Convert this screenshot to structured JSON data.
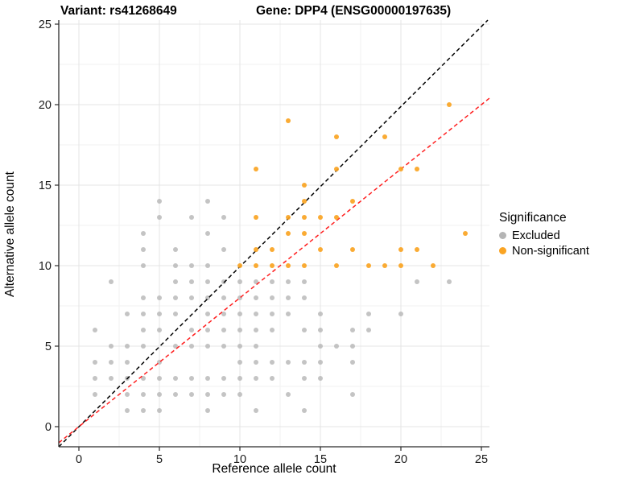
{
  "title": {
    "variant_label": "Variant: rs41268649",
    "gene_label": "Gene: DPP4 (ENSG00000197635)"
  },
  "axes": {
    "x_label": "Reference allele count",
    "y_label": "Alternative allele count"
  },
  "legend": {
    "title": "Significance",
    "items": [
      {
        "label": "Excluded",
        "color": "#B5B5B5"
      },
      {
        "label": "Non-significant",
        "color": "#FAA423"
      }
    ]
  },
  "chart_data": {
    "type": "scatter",
    "title": "Variant: rs41268649    Gene: DPP4 (ENSG00000197635)",
    "xlabel": "Reference allele count",
    "ylabel": "Alternative allele count",
    "xlim": [
      -1.25,
      25.5
    ],
    "ylim": [
      -1.25,
      25.25
    ],
    "x_ticks": [
      0,
      5,
      10,
      15,
      20,
      25
    ],
    "y_ticks": [
      0,
      5,
      10,
      15,
      20,
      25
    ],
    "minor_ticks": [
      2.5,
      7.5,
      12.5,
      17.5,
      22.5
    ],
    "grid": true,
    "legend_title": "Significance",
    "legend_position": "right",
    "series": [
      {
        "name": "Excluded",
        "color": "#B5B5B5",
        "opacity": 0.8,
        "points": [
          [
            3,
            1
          ],
          [
            4,
            1
          ],
          [
            5,
            1
          ],
          [
            8,
            1
          ],
          [
            11,
            1
          ],
          [
            14,
            1
          ],
          [
            1,
            2
          ],
          [
            3,
            2
          ],
          [
            4,
            2
          ],
          [
            5,
            2
          ],
          [
            6,
            2
          ],
          [
            7,
            2
          ],
          [
            8,
            2
          ],
          [
            9,
            2
          ],
          [
            10,
            2
          ],
          [
            13,
            2
          ],
          [
            17,
            2
          ],
          [
            1,
            3
          ],
          [
            2,
            3
          ],
          [
            3,
            3
          ],
          [
            4,
            3
          ],
          [
            5,
            3
          ],
          [
            6,
            3
          ],
          [
            7,
            3
          ],
          [
            8,
            3
          ],
          [
            9,
            3
          ],
          [
            10,
            3
          ],
          [
            11,
            3
          ],
          [
            12,
            3
          ],
          [
            14,
            3
          ],
          [
            15,
            3
          ],
          [
            1,
            4
          ],
          [
            2,
            4
          ],
          [
            3,
            4
          ],
          [
            5,
            4
          ],
          [
            10,
            4
          ],
          [
            11,
            4
          ],
          [
            12,
            4
          ],
          [
            13,
            4
          ],
          [
            14,
            4
          ],
          [
            15,
            4
          ],
          [
            17,
            4
          ],
          [
            2,
            5
          ],
          [
            3,
            5
          ],
          [
            4,
            5
          ],
          [
            6,
            5
          ],
          [
            7,
            5
          ],
          [
            8,
            5
          ],
          [
            9,
            5
          ],
          [
            10,
            5
          ],
          [
            11,
            5
          ],
          [
            15,
            5
          ],
          [
            16,
            5
          ],
          [
            17,
            5
          ],
          [
            1,
            6
          ],
          [
            4,
            6
          ],
          [
            5,
            6
          ],
          [
            7,
            6
          ],
          [
            8,
            6
          ],
          [
            9,
            6
          ],
          [
            10,
            6
          ],
          [
            11,
            6
          ],
          [
            12,
            6
          ],
          [
            14,
            6
          ],
          [
            15,
            6
          ],
          [
            17,
            6
          ],
          [
            18,
            6
          ],
          [
            3,
            7
          ],
          [
            4,
            7
          ],
          [
            5,
            7
          ],
          [
            6,
            7
          ],
          [
            8,
            7
          ],
          [
            9,
            7
          ],
          [
            10,
            7
          ],
          [
            11,
            7
          ],
          [
            12,
            7
          ],
          [
            13,
            7
          ],
          [
            15,
            7
          ],
          [
            18,
            7
          ],
          [
            20,
            7
          ],
          [
            4,
            8
          ],
          [
            5,
            8
          ],
          [
            6,
            8
          ],
          [
            7,
            8
          ],
          [
            8,
            8
          ],
          [
            9,
            8
          ],
          [
            10,
            8
          ],
          [
            11,
            8
          ],
          [
            12,
            8
          ],
          [
            13,
            8
          ],
          [
            14,
            8
          ],
          [
            2,
            9
          ],
          [
            6,
            9
          ],
          [
            7,
            9
          ],
          [
            8,
            9
          ],
          [
            9,
            9
          ],
          [
            10,
            9
          ],
          [
            11,
            9
          ],
          [
            12,
            9
          ],
          [
            13,
            9
          ],
          [
            14,
            9
          ],
          [
            21,
            9
          ],
          [
            23,
            9
          ],
          [
            4,
            10
          ],
          [
            6,
            10
          ],
          [
            7,
            10
          ],
          [
            8,
            10
          ],
          [
            4,
            11
          ],
          [
            6,
            11
          ],
          [
            9,
            11
          ],
          [
            4,
            12
          ],
          [
            8,
            12
          ],
          [
            5,
            13
          ],
          [
            7,
            13
          ],
          [
            9,
            13
          ],
          [
            5,
            14
          ],
          [
            8,
            14
          ]
        ]
      },
      {
        "name": "Non-significant",
        "color": "#FAA423",
        "opacity": 0.92,
        "points": [
          [
            10,
            10
          ],
          [
            11,
            10
          ],
          [
            12,
            10
          ],
          [
            13,
            10
          ],
          [
            14,
            10
          ],
          [
            16,
            10
          ],
          [
            18,
            10
          ],
          [
            19,
            10
          ],
          [
            20,
            10
          ],
          [
            22,
            10
          ],
          [
            11,
            11
          ],
          [
            12,
            11
          ],
          [
            15,
            11
          ],
          [
            17,
            11
          ],
          [
            20,
            11
          ],
          [
            21,
            11
          ],
          [
            13,
            12
          ],
          [
            14,
            12
          ],
          [
            24,
            12
          ],
          [
            11,
            13
          ],
          [
            13,
            13
          ],
          [
            14,
            13
          ],
          [
            15,
            13
          ],
          [
            16,
            13
          ],
          [
            14,
            14
          ],
          [
            17,
            14
          ],
          [
            14,
            15
          ],
          [
            11,
            16
          ],
          [
            16,
            16
          ],
          [
            20,
            16
          ],
          [
            21,
            16
          ],
          [
            16,
            18
          ],
          [
            19,
            18
          ],
          [
            13,
            19
          ],
          [
            23,
            20
          ]
        ]
      }
    ],
    "lines": [
      {
        "name": "identity-line",
        "style": "dashed",
        "color": "#000000",
        "from": [
          -1.25,
          -1.25
        ],
        "to": [
          25.4,
          25.25
        ]
      },
      {
        "name": "expected-ratio-line",
        "style": "dashed",
        "color": "#FF1F1F",
        "from": [
          -1.25,
          -1.0
        ],
        "to": [
          25.5,
          20.4
        ]
      }
    ]
  }
}
